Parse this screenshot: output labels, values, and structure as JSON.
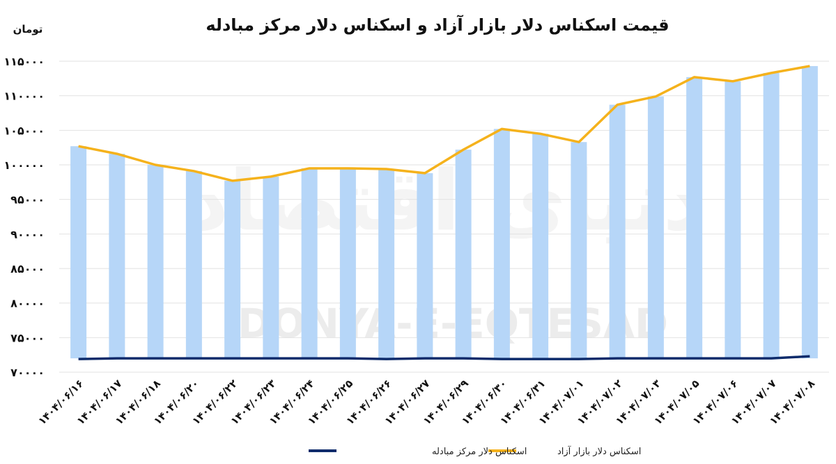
{
  "chart_data": {
    "type": "bar",
    "title": "قیمت اسکناس دلار بازار آزاد و اسکناس دلار مرکز مبادله",
    "ylabel": "تومان",
    "ylim": [
      70000,
      115000
    ],
    "y_ticks": [
      "۷۰۰۰۰",
      "۷۵۰۰۰",
      "۸۰۰۰۰",
      "۸۵۰۰۰",
      "۹۰۰۰۰",
      "۹۵۰۰۰",
      "۱۰۰۰۰۰",
      "۱۰۵۰۰۰",
      "۱۱۰۰۰۰",
      "۱۱۵۰۰۰"
    ],
    "categories": [
      "۱۴۰۴/۰۶/۱۶",
      "۱۴۰۴/۰۶/۱۷",
      "۱۴۰۴/۰۶/۱۸",
      "۱۴۰۴/۰۶/۲۰",
      "۱۴۰۴/۰۶/۲۲",
      "۱۴۰۴/۰۶/۲۳",
      "۱۴۰۴/۰۶/۲۴",
      "۱۴۰۴/۰۶/۲۵",
      "۱۴۰۴/۰۶/۲۶",
      "۱۴۰۴/۰۶/۲۷",
      "۱۴۰۴/۰۶/۲۹",
      "۱۴۰۴/۰۶/۳۰",
      "۱۴۰۴/۰۶/۳۱",
      "۱۴۰۴/۰۷/۰۱",
      "۱۴۰۴/۰۷/۰۲",
      "۱۴۰۴/۰۷/۰۳",
      "۱۴۰۴/۰۷/۰۵",
      "۱۴۰۴/۰۷/۰۶",
      "۱۴۰۴/۰۷/۰۷",
      "۱۴۰۴/۰۷/۰۸"
    ],
    "grid": true,
    "legend_position": "bottom",
    "series": [
      {
        "name": "اسکناس دلار بازار آزاد",
        "values": [
          102700,
          101600,
          100000,
          99100,
          97700,
          98300,
          99500,
          99500,
          99400,
          98800,
          102200,
          105200,
          104500,
          103300,
          108700,
          109900,
          112700,
          112100,
          113300,
          114300
        ],
        "bar_color": "#b6d6f8",
        "line_color": "#f5b21c"
      },
      {
        "name": "اسکناس دلار مرکز مبادله",
        "values": [
          71900,
          72000,
          72000,
          72000,
          72000,
          72000,
          72000,
          72000,
          71900,
          72000,
          72000,
          71900,
          71900,
          71900,
          72000,
          72000,
          72000,
          72000,
          72000,
          72300
        ],
        "line_color": "#0d2b6b"
      }
    ]
  },
  "watermark": {
    "persian": "دنیای اقتصاد",
    "latin": "DONYA-E-EQTESAD"
  }
}
